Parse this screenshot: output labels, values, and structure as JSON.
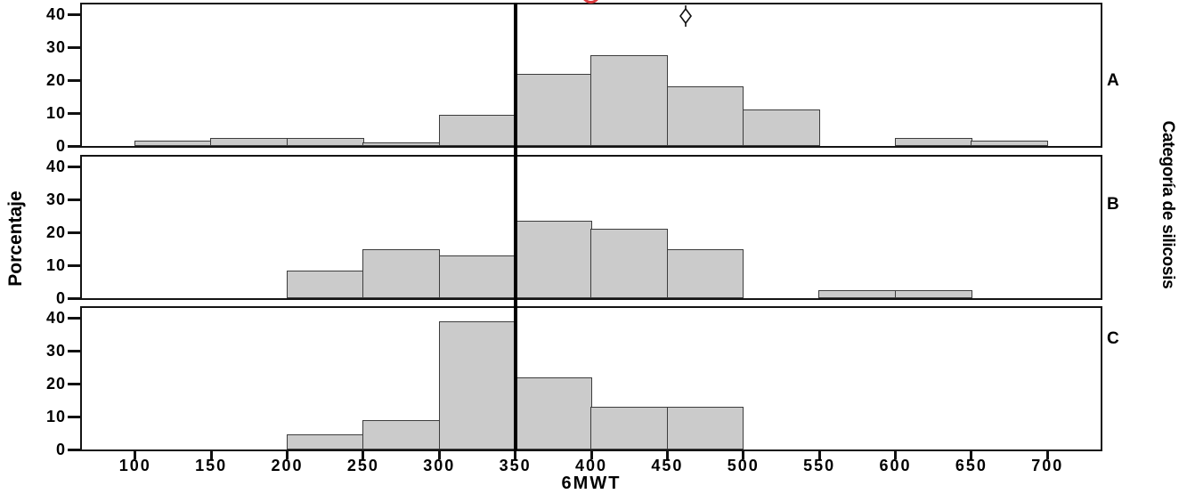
{
  "chart_data": {
    "type": "bar",
    "variant": "paneled-histogram",
    "title": "",
    "xlabel": "6MWT",
    "ylabel": "Porcentaje",
    "panel_axis_label": "Categoría de silicosis",
    "xlim": [
      65,
      735
    ],
    "ylim": [
      0,
      43
    ],
    "x_ticks": [
      100,
      150,
      200,
      250,
      300,
      350,
      400,
      450,
      500,
      550,
      600,
      650,
      700
    ],
    "y_ticks": [
      0,
      10,
      20,
      30,
      40
    ],
    "bin_width": 50,
    "grid": false,
    "reference_line_x": 350,
    "panels": [
      {
        "label": "A",
        "bars": [
          {
            "bin_start": 100,
            "pct": 1.5
          },
          {
            "bin_start": 150,
            "pct": 2.5
          },
          {
            "bin_start": 200,
            "pct": 2.5
          },
          {
            "bin_start": 250,
            "pct": 1
          },
          {
            "bin_start": 300,
            "pct": 9.5
          },
          {
            "bin_start": 350,
            "pct": 22
          },
          {
            "bin_start": 400,
            "pct": 27.5
          },
          {
            "bin_start": 450,
            "pct": 18
          },
          {
            "bin_start": 500,
            "pct": 11
          },
          {
            "bin_start": 600,
            "pct": 2.5
          },
          {
            "bin_start": 650,
            "pct": 1.5
          }
        ],
        "outliers": [
          {
            "x": 462,
            "pct": 39.5
          }
        ]
      },
      {
        "label": "B",
        "bars": [
          {
            "bin_start": 200,
            "pct": 8.5
          },
          {
            "bin_start": 250,
            "pct": 15
          },
          {
            "bin_start": 300,
            "pct": 13
          },
          {
            "bin_start": 350,
            "pct": 23.5
          },
          {
            "bin_start": 400,
            "pct": 21
          },
          {
            "bin_start": 450,
            "pct": 15
          },
          {
            "bin_start": 550,
            "pct": 2.5
          },
          {
            "bin_start": 600,
            "pct": 2.5
          }
        ],
        "outliers": []
      },
      {
        "label": "C",
        "bars": [
          {
            "bin_start": 200,
            "pct": 4.5
          },
          {
            "bin_start": 250,
            "pct": 9
          },
          {
            "bin_start": 300,
            "pct": 39
          },
          {
            "bin_start": 350,
            "pct": 22
          },
          {
            "bin_start": 400,
            "pct": 13
          },
          {
            "bin_start": 450,
            "pct": 13
          }
        ],
        "outliers": []
      }
    ]
  },
  "colors": {
    "bar_fill": "#cbcbcb",
    "bar_border": "#3d3d3d",
    "frame": "#141414",
    "reference_line": "#000000",
    "text": "#000000",
    "cropped_red_glyph": "#da383c"
  },
  "decorations": {
    "cropped_red_glyph": "partially cut-off red character at top edge of figure"
  }
}
